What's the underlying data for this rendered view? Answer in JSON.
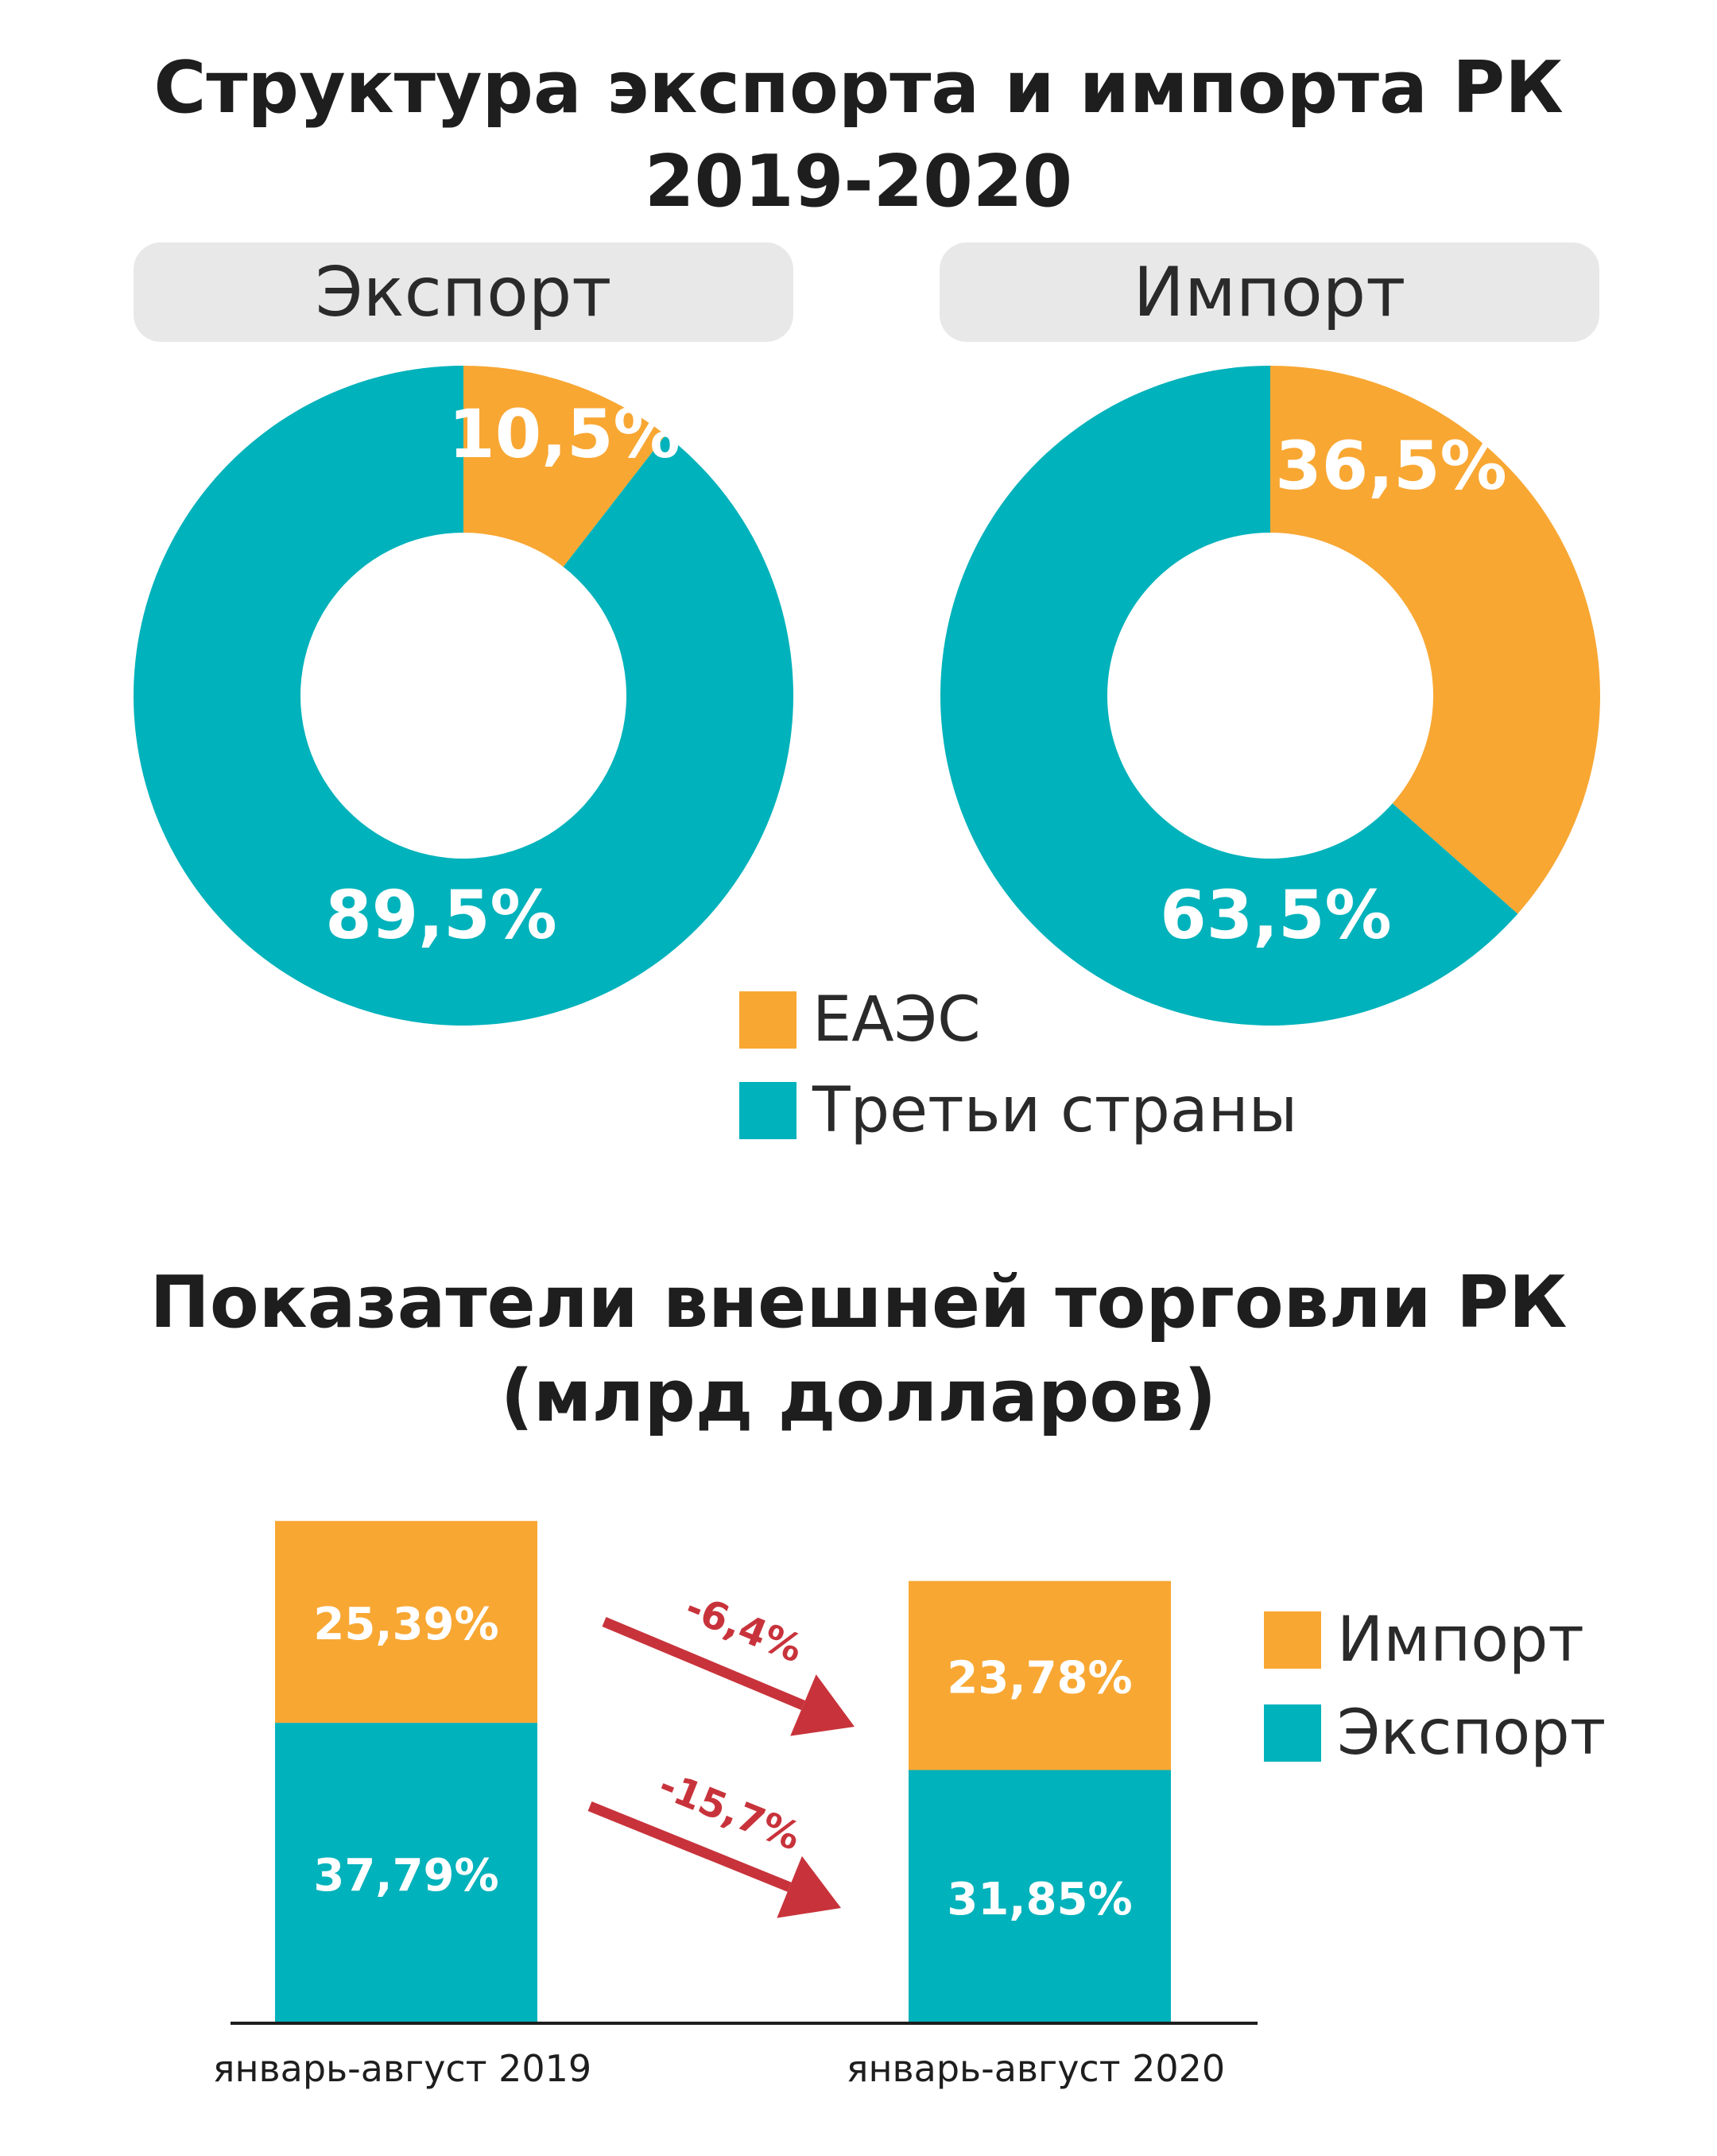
{
  "colors": {
    "eaes": "#f8a733",
    "third": "#00b2bb",
    "arrow": "#c8333b",
    "text": "#1e1e1e"
  },
  "section1": {
    "title_line1": "Структура экспорта и импорта РК",
    "title_line2": "2019-2020",
    "legend": {
      "eaes": "ЕАЭС",
      "third": "Третьи страны"
    }
  },
  "section2": {
    "title_line1": "Показатели внешней торговли РК",
    "title_line2": "(млрд долларов)",
    "legend": {
      "import": "Импорт",
      "export": "Экспорт"
    }
  },
  "chart_data": [
    {
      "type": "pie",
      "title": "Экспорт",
      "labels": [
        "ЕАЭС",
        "Третьи страны"
      ],
      "values": [
        10.5,
        89.5
      ],
      "value_labels": [
        "10,5%",
        "89,5%"
      ],
      "colors": [
        "#f8a733",
        "#00b2bb"
      ]
    },
    {
      "type": "pie",
      "title": "Импорт",
      "labels": [
        "ЕАЭС",
        "Третьи страны"
      ],
      "values": [
        36.5,
        63.5
      ],
      "value_labels": [
        "36,5%",
        "63,5%"
      ],
      "colors": [
        "#f8a733",
        "#00b2bb"
      ]
    },
    {
      "type": "bar",
      "stacked": true,
      "categories": [
        "январь-август 2019",
        "январь-август 2020"
      ],
      "series": [
        {
          "name": "Экспорт",
          "values": [
            37.79,
            31.85
          ],
          "value_labels": [
            "37,79%",
            "31,85%"
          ],
          "color": "#00b2bb"
        },
        {
          "name": "Импорт",
          "values": [
            25.39,
            23.78
          ],
          "value_labels": [
            "25,39%",
            "23,78%"
          ],
          "color": "#f8a733"
        }
      ],
      "annotations": {
        "import_change": "-6,4%",
        "export_change": "-15,7%"
      },
      "legend": "right"
    }
  ]
}
